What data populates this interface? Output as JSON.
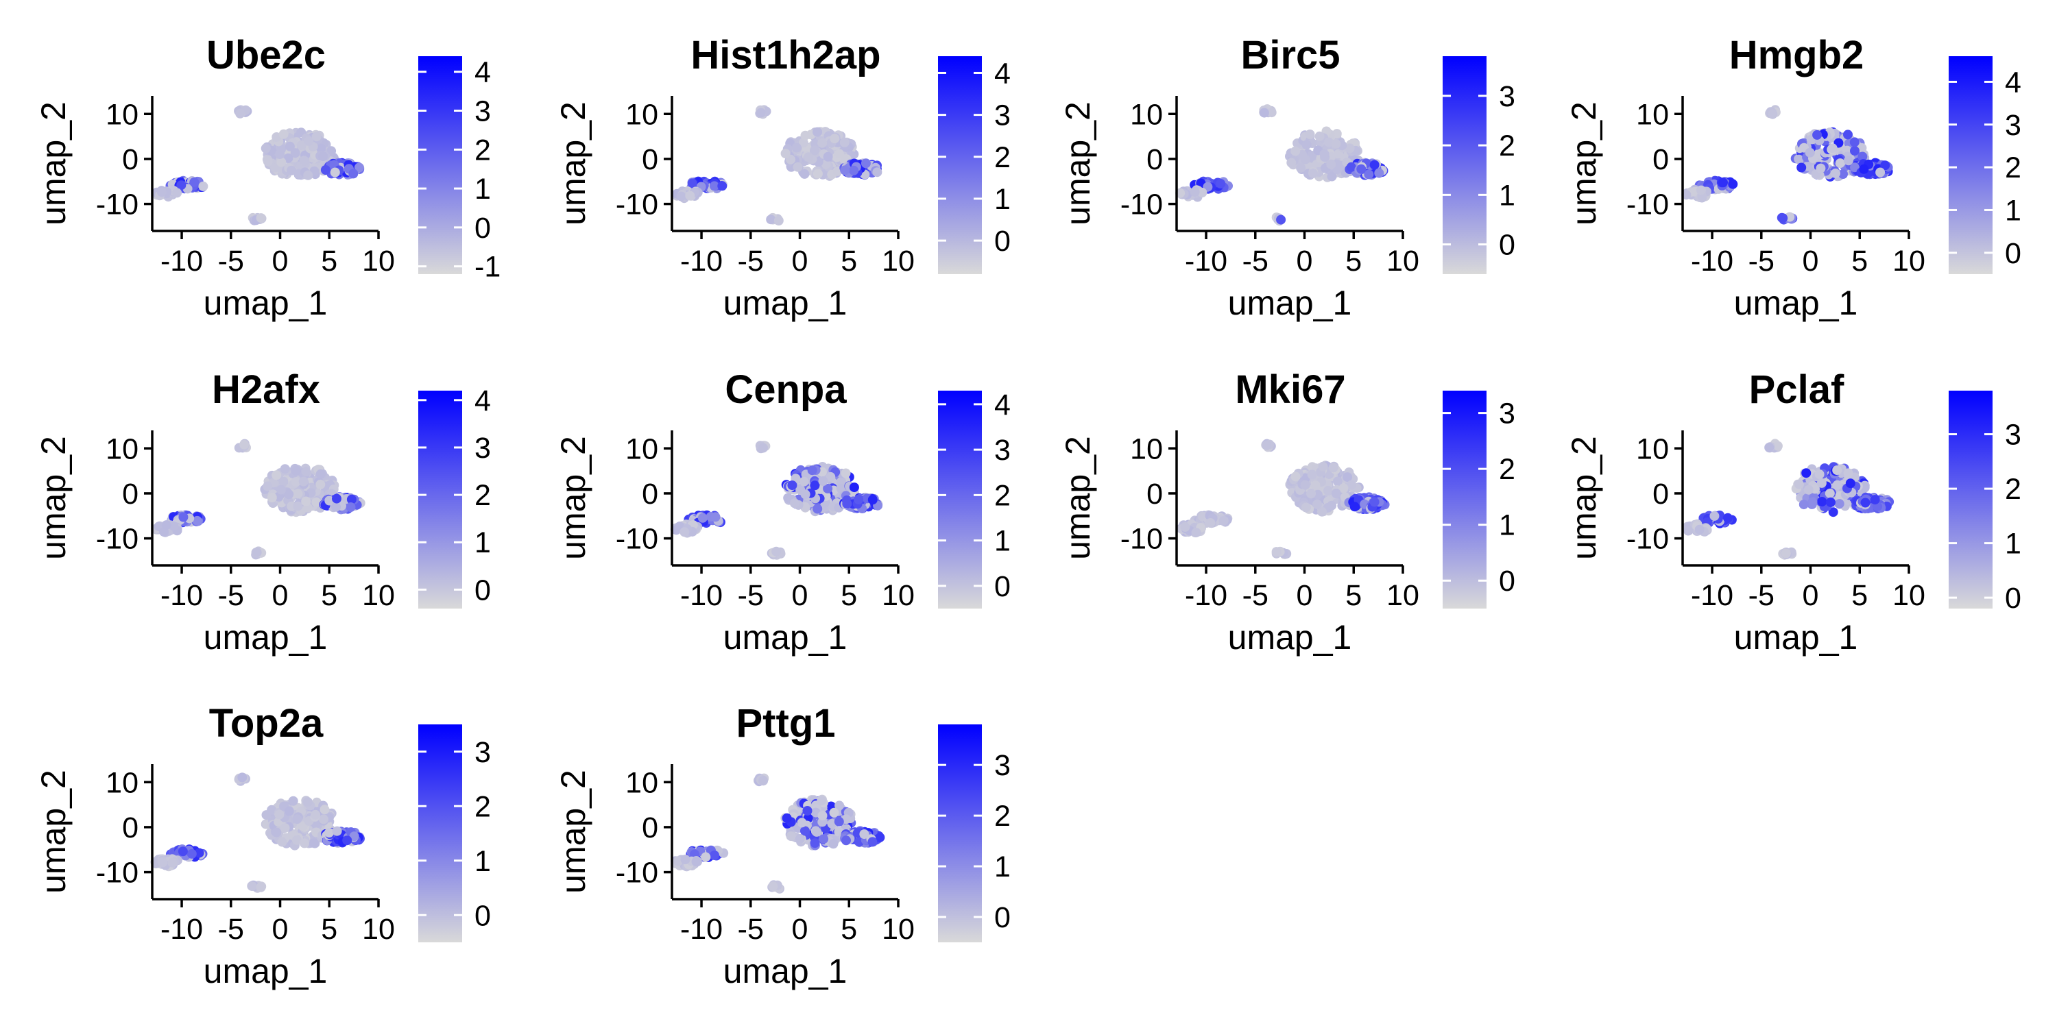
{
  "figure": {
    "colors": {
      "low": "#d9d9d9",
      "high": "#0000ff",
      "axis": "#000000"
    }
  },
  "chart_data": [
    {
      "type": "scatter",
      "title": "Ube2c",
      "xlabel": "umap_1",
      "ylabel": "umap_2",
      "x_ticks": [
        -10,
        -5,
        0,
        5,
        10
      ],
      "y_ticks": [
        -10,
        0,
        10
      ],
      "xlim": [
        -13,
        10
      ],
      "ylim": [
        -16,
        14
      ],
      "colorbar": {
        "min": -1.2,
        "max": 4.4,
        "ticks": [
          -1,
          0,
          1,
          2,
          3,
          4
        ]
      },
      "hot_clusters": [
        "right_tip",
        "left_main"
      ]
    },
    {
      "type": "scatter",
      "title": "Hist1h2ap",
      "xlabel": "umap_1",
      "ylabel": "umap_2",
      "x_ticks": [
        -10,
        -5,
        0,
        5,
        10
      ],
      "y_ticks": [
        -10,
        0,
        10
      ],
      "xlim": [
        -13,
        10
      ],
      "ylim": [
        -16,
        14
      ],
      "colorbar": {
        "min": -0.8,
        "max": 4.4,
        "ticks": [
          0,
          1,
          2,
          3,
          4
        ]
      },
      "hot_clusters": [
        "right_tip",
        "left_main"
      ]
    },
    {
      "type": "scatter",
      "title": "Birc5",
      "xlabel": "umap_1",
      "ylabel": "umap_2",
      "x_ticks": [
        -10,
        -5,
        0,
        5,
        10
      ],
      "y_ticks": [
        -10,
        0,
        10
      ],
      "xlim": [
        -13,
        10
      ],
      "ylim": [
        -16,
        14
      ],
      "colorbar": {
        "min": -0.6,
        "max": 3.8,
        "ticks": [
          0,
          1,
          2,
          3
        ]
      },
      "hot_clusters": [
        "right_tip",
        "left_main",
        "lower_small"
      ]
    },
    {
      "type": "scatter",
      "title": "Hmgb2",
      "xlabel": "umap_1",
      "ylabel": "umap_2",
      "x_ticks": [
        -10,
        -5,
        0,
        5,
        10
      ],
      "y_ticks": [
        -10,
        0,
        10
      ],
      "xlim": [
        -13,
        10
      ],
      "ylim": [
        -16,
        14
      ],
      "colorbar": {
        "min": -0.5,
        "max": 4.6,
        "ticks": [
          0,
          1,
          2,
          3,
          4
        ]
      },
      "hot_clusters": [
        "right_tip",
        "left_main",
        "lower_small",
        "main_body"
      ]
    },
    {
      "type": "scatter",
      "title": "H2afx",
      "xlabel": "umap_1",
      "ylabel": "umap_2",
      "x_ticks": [
        -10,
        -5,
        0,
        5,
        10
      ],
      "y_ticks": [
        -10,
        0,
        10
      ],
      "xlim": [
        -13,
        10
      ],
      "ylim": [
        -16,
        14
      ],
      "colorbar": {
        "min": -0.4,
        "max": 4.2,
        "ticks": [
          0,
          1,
          2,
          3,
          4
        ]
      },
      "hot_clusters": [
        "right_tip",
        "left_main"
      ]
    },
    {
      "type": "scatter",
      "title": "Cenpa",
      "xlabel": "umap_1",
      "ylabel": "umap_2",
      "x_ticks": [
        -10,
        -5,
        0,
        5,
        10
      ],
      "y_ticks": [
        -10,
        0,
        10
      ],
      "xlim": [
        -13,
        10
      ],
      "ylim": [
        -16,
        14
      ],
      "colorbar": {
        "min": -0.5,
        "max": 4.3,
        "ticks": [
          0,
          1,
          2,
          3,
          4
        ]
      },
      "hot_clusters": [
        "right_tip",
        "left_main",
        "main_body"
      ]
    },
    {
      "type": "scatter",
      "title": "Mki67",
      "xlabel": "umap_1",
      "ylabel": "umap_2",
      "x_ticks": [
        -10,
        -5,
        0,
        5,
        10
      ],
      "y_ticks": [
        -10,
        0,
        10
      ],
      "xlim": [
        -13,
        10
      ],
      "ylim": [
        -16,
        14
      ],
      "colorbar": {
        "min": -0.5,
        "max": 3.4,
        "ticks": [
          0,
          1,
          2,
          3
        ]
      },
      "hot_clusters": [
        "right_tip"
      ]
    },
    {
      "type": "scatter",
      "title": "Pclaf",
      "xlabel": "umap_1",
      "ylabel": "umap_2",
      "x_ticks": [
        -10,
        -5,
        0,
        5,
        10
      ],
      "y_ticks": [
        -10,
        0,
        10
      ],
      "xlim": [
        -13,
        10
      ],
      "ylim": [
        -16,
        14
      ],
      "colorbar": {
        "min": -0.2,
        "max": 3.8,
        "ticks": [
          0,
          1,
          2,
          3
        ]
      },
      "hot_clusters": [
        "right_tip",
        "left_main",
        "main_body"
      ]
    },
    {
      "type": "scatter",
      "title": "Top2a",
      "xlabel": "umap_1",
      "ylabel": "umap_2",
      "x_ticks": [
        -10,
        -5,
        0,
        5,
        10
      ],
      "y_ticks": [
        -10,
        0,
        10
      ],
      "xlim": [
        -13,
        10
      ],
      "ylim": [
        -16,
        14
      ],
      "colorbar": {
        "min": -0.5,
        "max": 3.5,
        "ticks": [
          0,
          1,
          2,
          3
        ]
      },
      "hot_clusters": [
        "right_tip",
        "left_main"
      ]
    },
    {
      "type": "scatter",
      "title": "Pttg1",
      "xlabel": "umap_1",
      "ylabel": "umap_2",
      "x_ticks": [
        -10,
        -5,
        0,
        5,
        10
      ],
      "y_ticks": [
        -10,
        0,
        10
      ],
      "xlim": [
        -13,
        10
      ],
      "ylim": [
        -16,
        14
      ],
      "colorbar": {
        "min": -0.5,
        "max": 3.8,
        "ticks": [
          0,
          1,
          2,
          3
        ]
      },
      "hot_clusters": [
        "right_tip",
        "left_main",
        "main_body"
      ]
    }
  ]
}
